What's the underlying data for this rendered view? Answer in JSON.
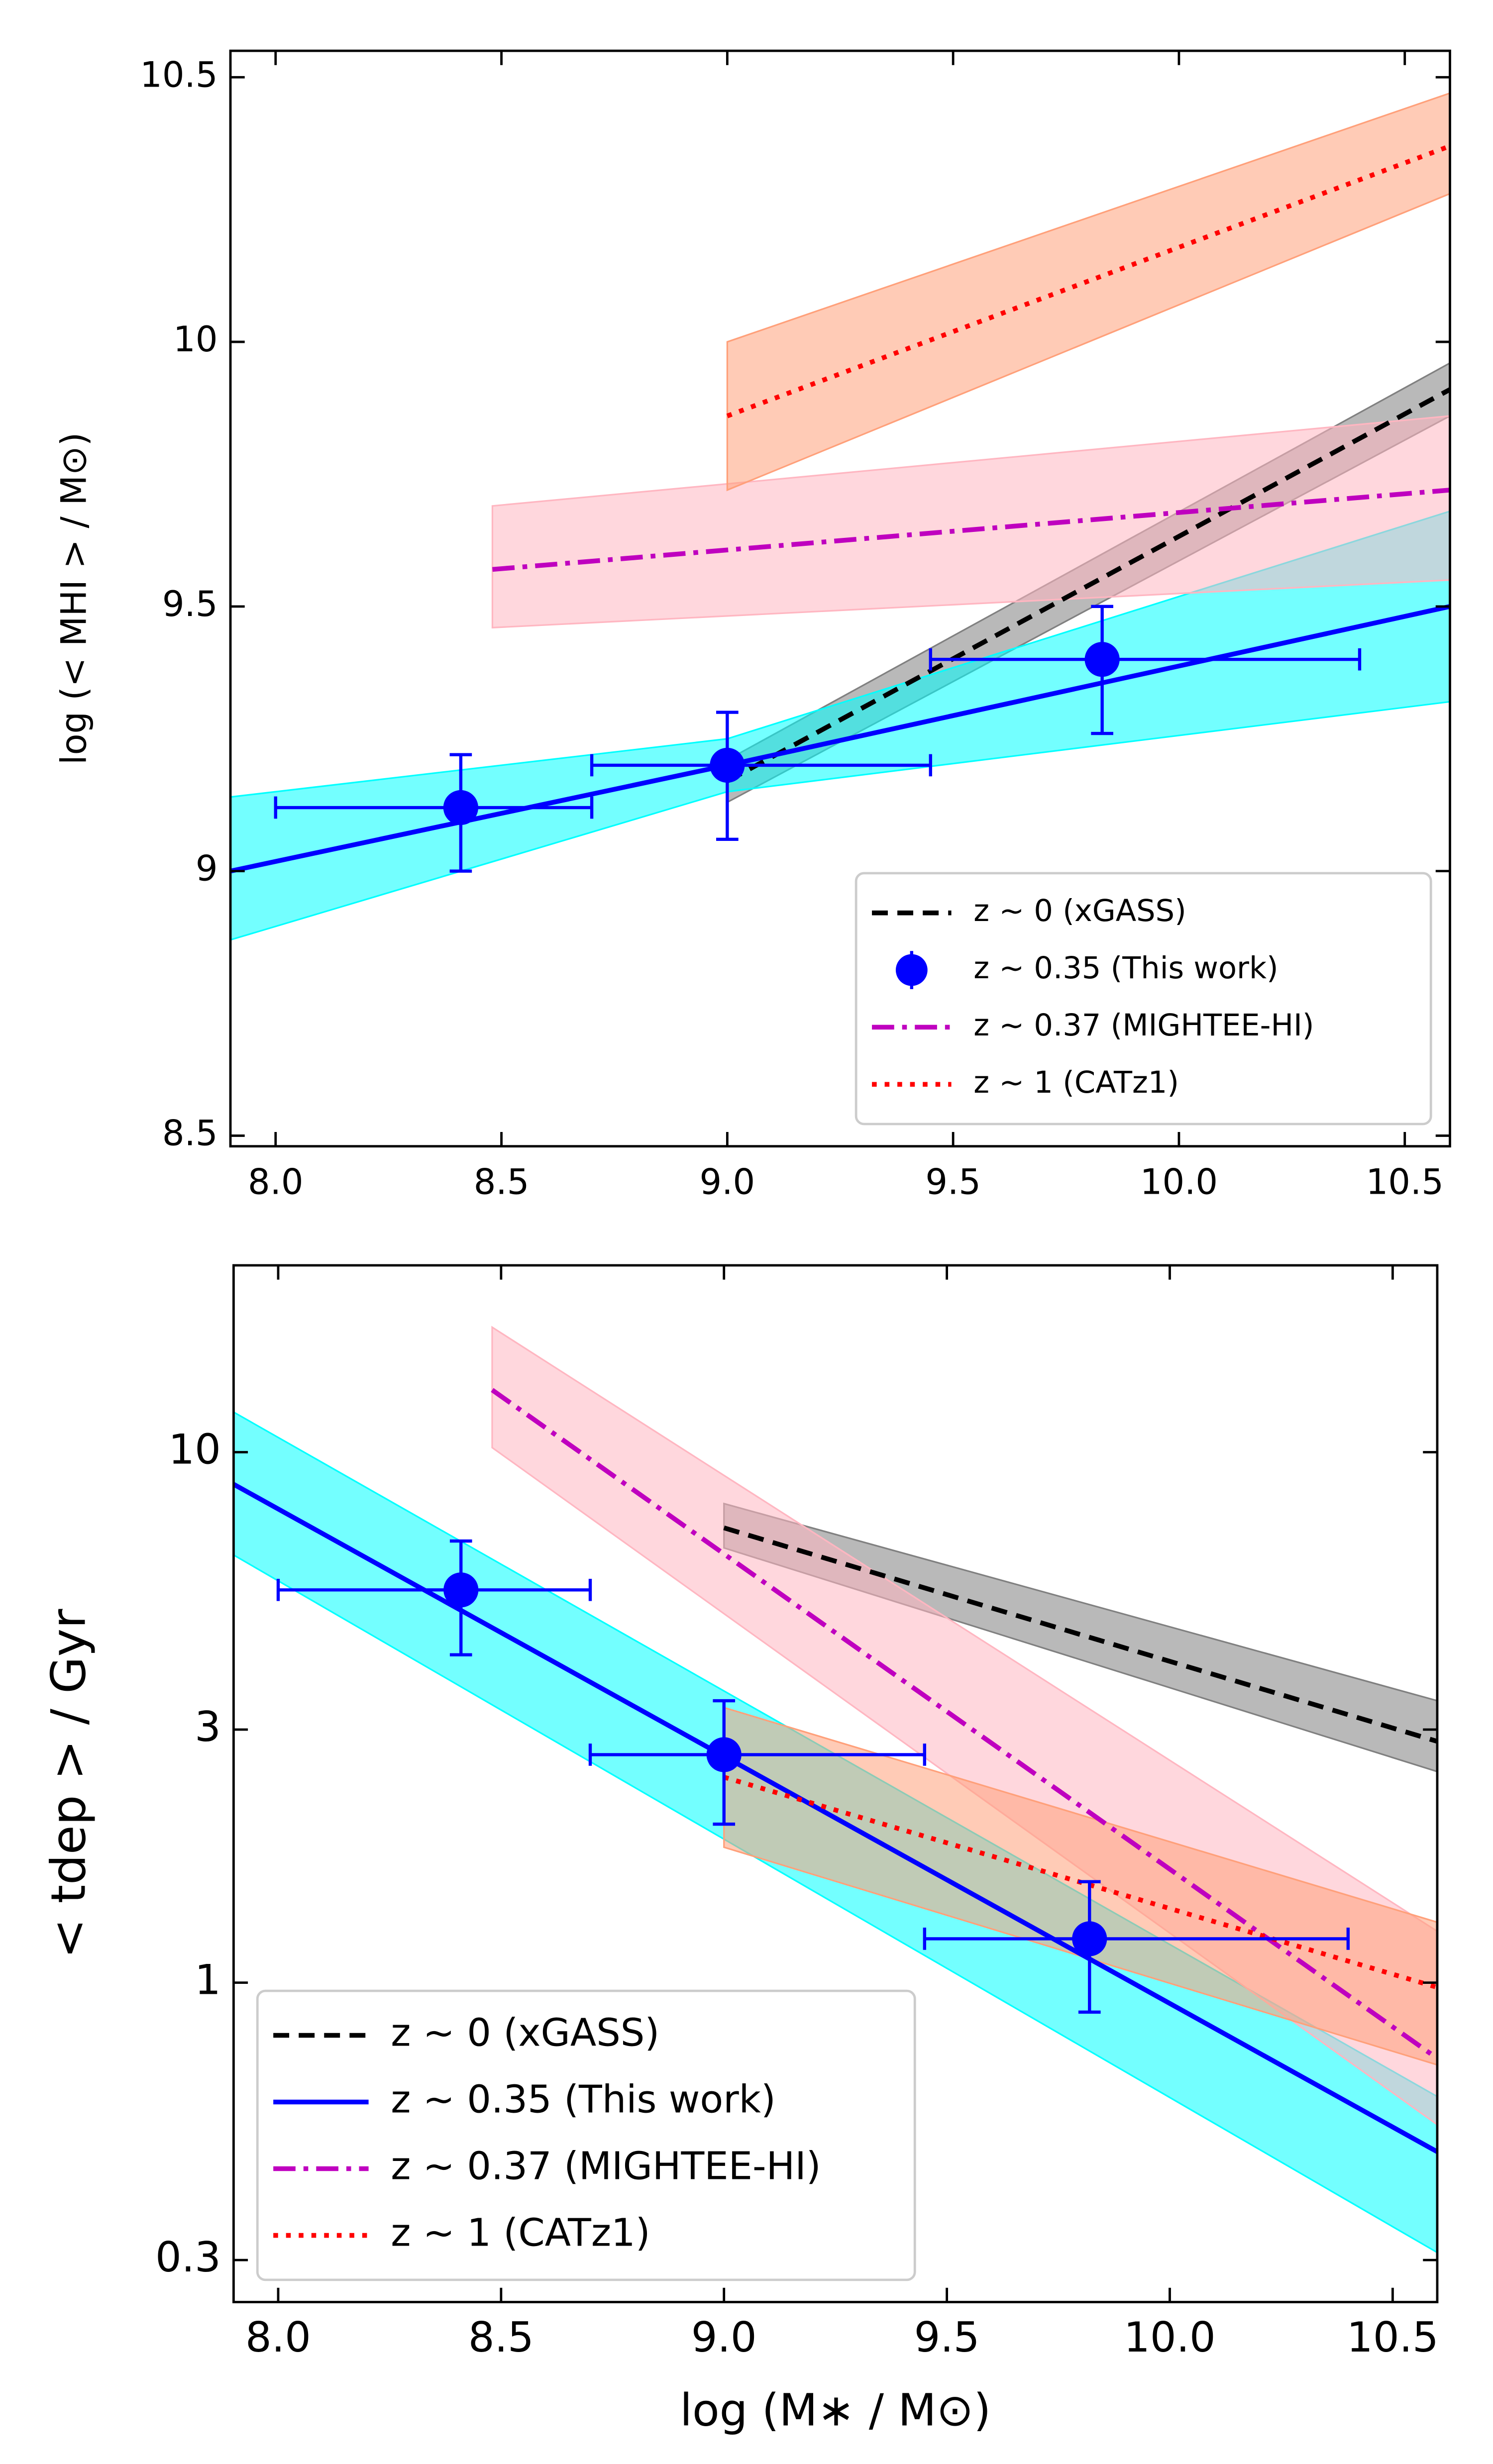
{
  "chart_data": [
    {
      "type": "line",
      "log_y": false,
      "legend_loc": "lower right",
      "ylabel": "log (< MHI > / M⊙)",
      "xlim": [
        7.9,
        10.6
      ],
      "ylim": [
        8.48,
        10.55
      ],
      "xticks": [
        {
          "value": 8,
          "label": "8.0"
        },
        8.5,
        {
          "value": 9,
          "label": "9.0"
        },
        9.5,
        {
          "value": 10,
          "label": "10.0"
        },
        10.5
      ],
      "yticks": [
        8.5,
        9,
        9.5,
        10,
        10.5
      ],
      "series": [
        {
          "name": "z ∼ 0 (xGASS)",
          "color": "#000000",
          "style": "dashed",
          "band_color": "#808080",
          "x": [
            9.0,
            10.6
          ],
          "values": [
            9.17,
            9.91
          ],
          "band_lower": [
            9.13,
            9.86
          ],
          "band_upper": [
            9.21,
            9.96
          ]
        },
        {
          "color": "#0000ff",
          "style": "solid",
          "band_color": "#00ffff",
          "x": [
            7.9,
            9.0,
            10.6
          ],
          "values": [
            9.0,
            9.2,
            9.5
          ],
          "band_lower": [
            8.87,
            9.15,
            9.32
          ],
          "band_upper": [
            9.14,
            9.25,
            9.68
          ]
        },
        {
          "name": "z ∼ 0.35 (This work)",
          "type": "errorbar",
          "color": "#0000ff",
          "x": [
            8.41,
            9.0,
            9.83
          ],
          "values": [
            9.12,
            9.2,
            9.4
          ],
          "x_low": [
            8.0,
            8.7,
            9.45
          ],
          "x_high": [
            8.7,
            9.45,
            10.4
          ],
          "y_low": [
            9.0,
            9.06,
            9.26
          ],
          "y_high": [
            9.22,
            9.3,
            9.5
          ]
        },
        {
          "name": "z ∼ 0.37 (MIGHTEE-HI)",
          "color": "#bf00bf",
          "style": "dashdot",
          "band_color": "#ffb6c1",
          "x": [
            8.48,
            10.6
          ],
          "values": [
            9.57,
            9.72
          ],
          "band_lower": [
            9.46,
            9.55
          ],
          "band_upper": [
            9.69,
            9.86
          ]
        },
        {
          "name": "z ∼ 1 (CATz1)",
          "color": "#ff0000",
          "style": "dotted",
          "band_color": "#ffa07a",
          "x": [
            9.0,
            10.6
          ],
          "values": [
            9.86,
            10.37
          ],
          "band_lower": [
            9.72,
            10.28
          ],
          "band_upper": [
            10.0,
            10.47
          ]
        }
      ]
    },
    {
      "type": "line",
      "log_y": true,
      "legend_loc": "lower left",
      "xlabel": "log (M∗ / M⊙)",
      "ylabel": "< tdep > / Gyr",
      "xlim": [
        7.9,
        10.6
      ],
      "ylim": [
        0.25,
        22.5
      ],
      "xticks": [
        {
          "value": 8,
          "label": "8.0"
        },
        8.5,
        {
          "value": 9,
          "label": "9.0"
        },
        9.5,
        {
          "value": 10,
          "label": "10.0"
        },
        10.5
      ],
      "yticks": [
        0.3,
        1,
        3,
        10
      ],
      "series": [
        {
          "name": "z ∼ 0 (xGASS)",
          "color": "#000000",
          "style": "dashed",
          "band_color": "#808080",
          "x": [
            9.0,
            10.6
          ],
          "values": [
            7.2,
            2.85
          ],
          "band_lower": [
            6.6,
            2.5
          ],
          "band_upper": [
            8.0,
            3.4
          ]
        },
        {
          "name": "z ∼ 0.35 (This work)",
          "color": "#0000ff",
          "style": "solid",
          "band_color": "#00ffff",
          "x": [
            7.9,
            10.6
          ],
          "values": [
            8.7,
            0.48
          ],
          "band_lower": [
            6.4,
            0.31
          ],
          "band_upper": [
            11.9,
            0.61
          ]
        },
        {
          "type": "errorbar",
          "color": "#0000ff",
          "x": [
            8.41,
            9.0,
            9.82
          ],
          "values": [
            5.5,
            2.69,
            1.21
          ],
          "x_low": [
            8.0,
            8.7,
            9.45
          ],
          "x_high": [
            8.7,
            9.45,
            10.4
          ],
          "y_low": [
            4.15,
            1.99,
            0.88
          ],
          "y_high": [
            6.8,
            3.4,
            1.55
          ]
        },
        {
          "name": "z ∼ 0.37 (MIGHTEE-HI)",
          "color": "#bf00bf",
          "style": "dashdot",
          "band_color": "#ffb6c1",
          "x": [
            8.48,
            10.6
          ],
          "values": [
            13.1,
            0.72
          ],
          "band_lower": [
            10.2,
            0.54
          ],
          "band_upper": [
            17.2,
            1.25
          ]
        },
        {
          "name": "z ∼ 1 (CATz1)",
          "color": "#ff0000",
          "style": "dotted",
          "band_color": "#ffa07a",
          "x": [
            9.0,
            10.6
          ],
          "values": [
            2.44,
            0.98
          ],
          "band_lower": [
            1.8,
            0.7
          ],
          "band_upper": [
            3.3,
            1.3
          ]
        }
      ]
    }
  ]
}
